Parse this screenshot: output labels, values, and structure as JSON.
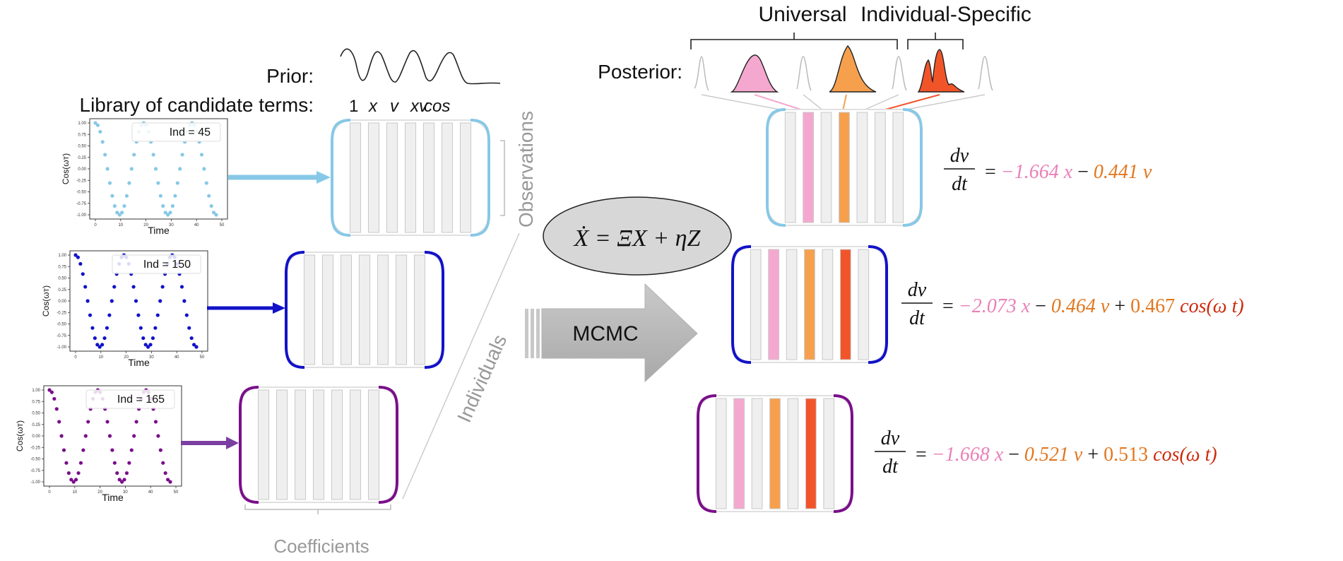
{
  "labels": {
    "prior": "Prior:",
    "library": "Library of candidate terms:",
    "terms": [
      "1",
      "x",
      "v",
      "xv",
      "cos"
    ],
    "posterior": "Posterior:",
    "universal": "Universal",
    "individual_specific": "Individual-Specific",
    "observations": "Observations",
    "individuals": "Individuals",
    "coefficients": "Coefficients",
    "mcmc": "MCMC",
    "model_equation": "Ẋ = ΞX + ηZ"
  },
  "colors": {
    "light_blue": "#87c8e6",
    "blue": "#1212c8",
    "purple": "#7a0f8a",
    "pink": "#f5a8cf",
    "orange": "#f6a04d",
    "red_orange": "#f2542a",
    "coef_pink": "#ea80b8",
    "coef_orange": "#e2771f",
    "coef_red": "#cc2a0c"
  },
  "panels": [
    {
      "legend": "Ind = 45",
      "ylabel": "Cos(ωт)",
      "xlabel": "Time",
      "yticks": [
        "1.00",
        "0.75",
        "0.50",
        "0.25",
        "0.00",
        "-0.25",
        "-0.50",
        "-0.75",
        "-1.00"
      ],
      "xticks": [
        "0",
        "10",
        "20",
        "30",
        "40",
        "50"
      ],
      "color": "#87c8e6"
    },
    {
      "legend": "Ind = 150",
      "ylabel": "Cos(ωт)",
      "xlabel": "Time",
      "yticks": [
        "1.00",
        "0.75",
        "0.50",
        "0.25",
        "0.00",
        "-0.25",
        "-0.50",
        "-0.75",
        "-1.00"
      ],
      "xticks": [
        "0",
        "10",
        "20",
        "30",
        "40",
        "50"
      ],
      "color": "#1212c8"
    },
    {
      "legend": "Ind = 165",
      "ylabel": "Cos(ωт)",
      "xlabel": "Time",
      "yticks": [
        "1.00",
        "0.75",
        "0.50",
        "0.25",
        "0.00",
        "-0.25",
        "-0.50",
        "-0.75",
        "-1.00"
      ],
      "xticks": [
        "0",
        "10",
        "20",
        "30",
        "40",
        "50"
      ],
      "color": "#7a0f8a"
    }
  ],
  "equations": [
    {
      "lhs_num": "dv",
      "lhs_den": "dt",
      "eq": "=",
      "t1": "−1.664 x",
      "op1": "−",
      "t2": "0.441 v",
      "op2": "",
      "t3": "",
      "t4": ""
    },
    {
      "lhs_num": "dv",
      "lhs_den": "dt",
      "eq": "=",
      "t1": "−2.073 x",
      "op1": "−",
      "t2": "0.464 v",
      "op2": "+",
      "t3": "0.467",
      "t4": "cos(ω t)"
    },
    {
      "lhs_num": "dv",
      "lhs_den": "dt",
      "eq": "=",
      "t1": "−1.668 x",
      "op1": "−",
      "t2": "0.521 v",
      "op2": "+",
      "t3": "0.513",
      "t4": "cos(ω t)"
    }
  ]
}
